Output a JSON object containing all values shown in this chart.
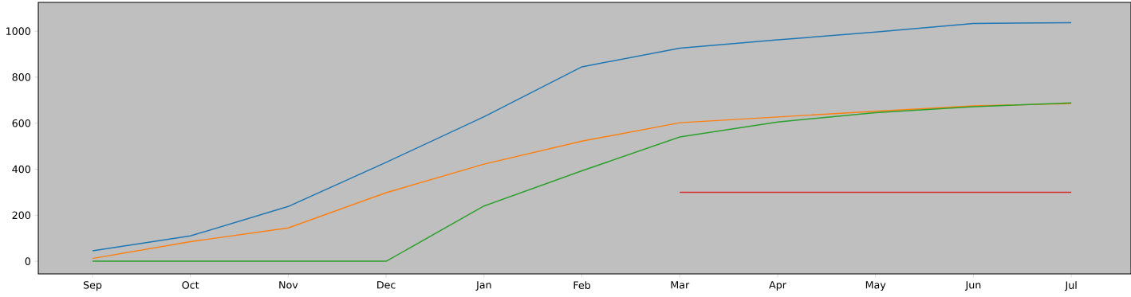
{
  "chart_data": {
    "type": "line",
    "categories": [
      "Sep",
      "Oct",
      "Nov",
      "Dec",
      "Jan",
      "Feb",
      "Mar",
      "Apr",
      "May",
      "Jun",
      "Jul"
    ],
    "series": [
      {
        "color": "#1f77b4",
        "values": [
          45,
          110,
          238,
          430,
          628,
          845,
          926,
          962,
          996,
          1033,
          1037
        ]
      },
      {
        "color": "#ff7f0e",
        "values": [
          12,
          85,
          145,
          298,
          422,
          522,
          602,
          627,
          652,
          675,
          685
        ]
      },
      {
        "color": "#2ca02c",
        "values": [
          0,
          0,
          0,
          0,
          240,
          393,
          540,
          605,
          646,
          672,
          688
        ]
      },
      {
        "color": "#d62728",
        "values": [
          null,
          null,
          null,
          null,
          null,
          null,
          300,
          300,
          300,
          300,
          300
        ]
      }
    ],
    "ylim": [
      -55,
      1125
    ],
    "yticks": [
      0,
      200,
      400,
      600,
      800,
      1000
    ],
    "marker": "none",
    "line_style": "solid"
  }
}
